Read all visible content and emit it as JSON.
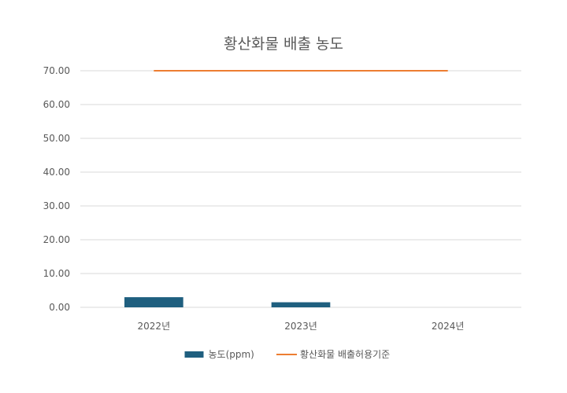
{
  "chart_data": {
    "type": "bar",
    "title": "황산화물 배출 농도",
    "xlabel": "",
    "ylabel": "",
    "categories": [
      "2022년",
      "2023년",
      "2024년"
    ],
    "ylim": [
      0,
      70
    ],
    "yticks": [
      "0.00",
      "10.00",
      "20.00",
      "30.00",
      "40.00",
      "50.00",
      "60.00",
      "70.00"
    ],
    "grid": true,
    "legend_position": "bottom",
    "series": [
      {
        "name": "농도(ppm)",
        "type": "bar",
        "color": "#1f5f7f",
        "values": [
          3.0,
          1.5,
          null
        ]
      },
      {
        "name": "황산화물 배출허용기준",
        "type": "line",
        "color": "#ed7d31",
        "values": [
          70,
          70,
          70
        ]
      }
    ]
  }
}
